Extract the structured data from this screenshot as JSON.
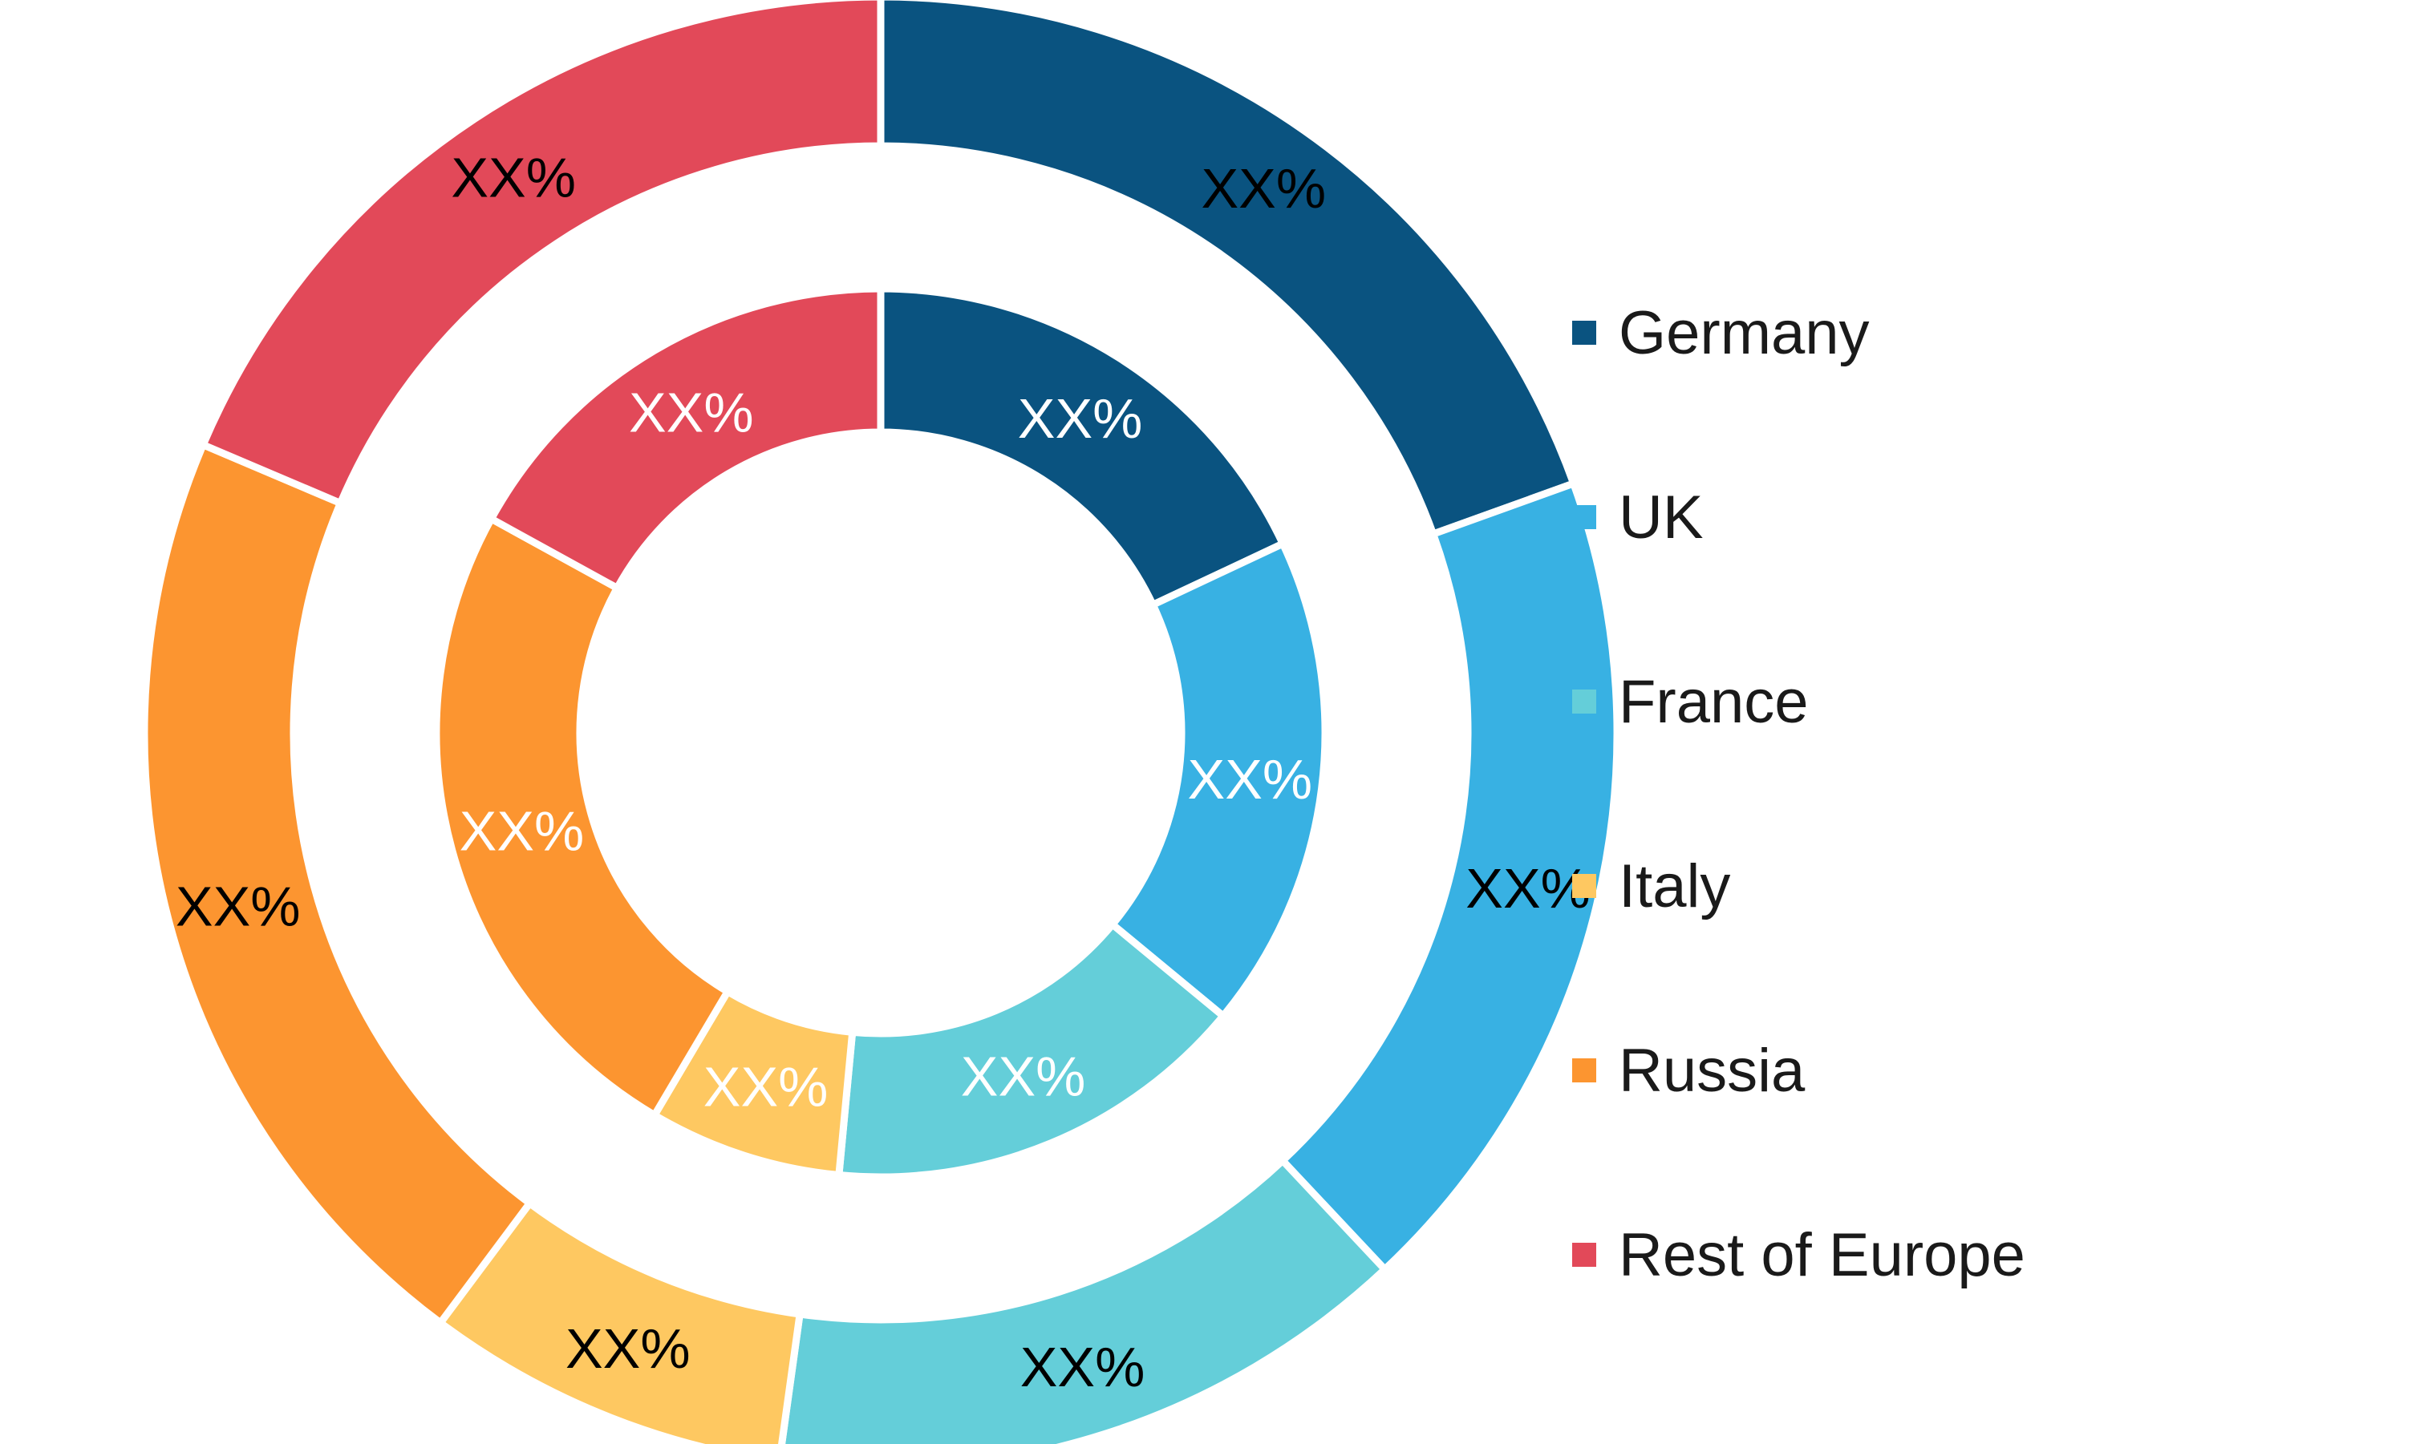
{
  "chart_data": {
    "type": "pie",
    "subtype": "double-donut",
    "categories": [
      "Germany",
      "UK",
      "France",
      "Italy",
      "Russia",
      "Rest of Europe"
    ],
    "colors": {
      "Germany": "#0a5380",
      "UK": "#38b1e3",
      "France": "#64ced9",
      "Italy": "#fec861",
      "Russia": "#fc9530",
      "Rest of Europe": "#e24959"
    },
    "series": [
      {
        "ring": "outer",
        "values": [
          19.5,
          18.5,
          14.2,
          8.0,
          21.2,
          18.6
        ],
        "labels": [
          "XX%",
          "XX%",
          "XX%",
          "XX%",
          "XX%",
          "XX%"
        ]
      },
      {
        "ring": "inner",
        "values": [
          18.0,
          18.0,
          15.5,
          7.0,
          24.5,
          17.0
        ],
        "labels": [
          "XX%",
          "XX%",
          "XX%",
          "XX%",
          "XX%",
          "XX%"
        ]
      }
    ],
    "legend": {
      "position": "right",
      "items": [
        {
          "label": "Germany",
          "color": "#0a5380"
        },
        {
          "label": "UK",
          "color": "#38b1e3"
        },
        {
          "label": "France",
          "color": "#64ced9"
        },
        {
          "label": "Italy",
          "color": "#fec861"
        },
        {
          "label": "Russia",
          "color": "#fc9530"
        },
        {
          "label": "Rest of Europe",
          "color": "#e24959"
        }
      ]
    }
  }
}
